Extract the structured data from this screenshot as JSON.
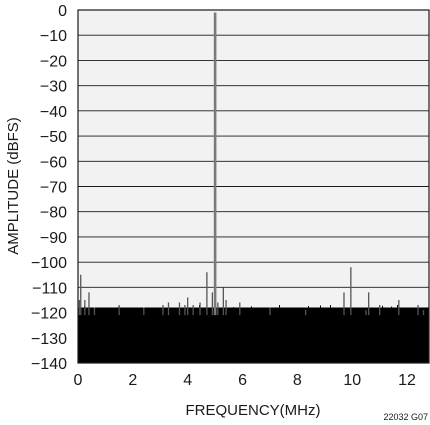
{
  "chart_data": {
    "type": "line",
    "title": "",
    "xlabel": "FREQUENCY(MHz)",
    "ylabel": "AMPLITUDE (dBFS)",
    "figure_code": "22032 G07",
    "xlim": [
      0,
      12.8
    ],
    "ylim": [
      -140,
      0
    ],
    "xticks": [
      0,
      2,
      4,
      6,
      8,
      10,
      12
    ],
    "yticks": [
      0,
      -10,
      -20,
      -30,
      -40,
      -50,
      -60,
      -70,
      -80,
      -90,
      -100,
      -110,
      -120,
      -130,
      -140
    ],
    "grid": "horizontal",
    "background_color": "#f2f2f2",
    "trace_color": "#000000",
    "noise_floor": {
      "min_db": -140,
      "typical_top_db": -121,
      "max_db": -118
    },
    "series": [
      {
        "values_note_x": "MHz",
        "x": [
          0.05,
          0.1,
          0.25,
          0.4,
          0.6,
          1.5,
          2.4,
          3.1,
          3.3,
          3.7,
          3.9,
          4.0,
          4.2,
          4.45,
          4.7,
          4.9,
          5.0,
          5.1,
          5.3,
          5.4,
          5.9,
          7.0,
          8.3,
          9.7,
          9.95,
          10.5,
          10.6,
          11.0,
          11.7,
          12.4,
          12.6
        ],
        "y": [
          -115,
          -105,
          -115,
          -112,
          -118,
          -117,
          -118,
          -117,
          -116,
          -116,
          -117,
          -114,
          -117,
          -116,
          -104,
          -112,
          -1,
          -116,
          -110,
          -115,
          -116,
          -118,
          -119,
          -112,
          -102,
          -119,
          -112,
          -117,
          -115,
          -117,
          -119
        ]
      }
    ]
  }
}
